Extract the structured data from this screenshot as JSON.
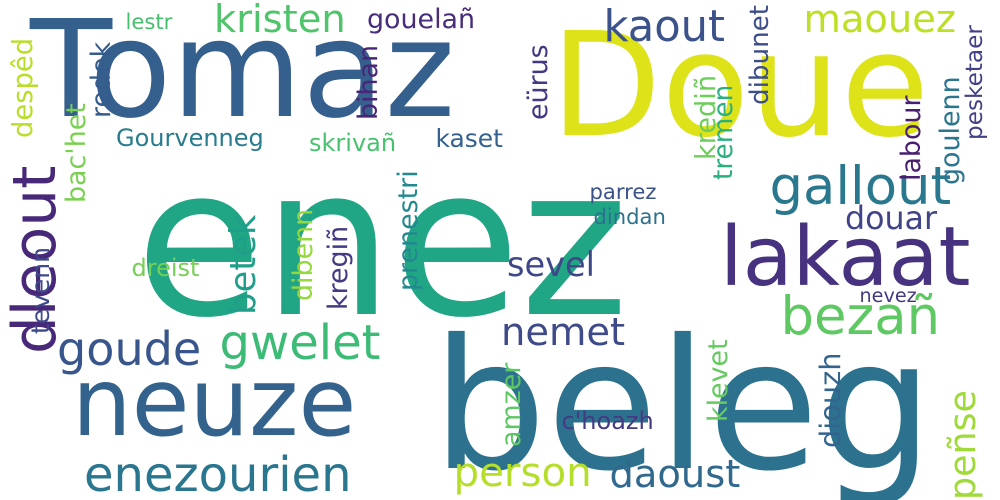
{
  "words": [
    {
      "text": "enez",
      "color": "#21a685"
    },
    {
      "text": "Doue",
      "color": "#dde318"
    },
    {
      "text": "Tomaz",
      "color": "#355f8d"
    },
    {
      "text": "beleg",
      "color": "#2c728e"
    },
    {
      "text": "neuze",
      "color": "#33638d"
    },
    {
      "text": "lakaat",
      "color": "#46327e"
    },
    {
      "text": "bezañ",
      "color": "#5ec962"
    },
    {
      "text": "gallout",
      "color": "#2a788e"
    },
    {
      "text": "dleout",
      "color": "#482878"
    },
    {
      "text": "enezourien",
      "color": "#2a768e"
    },
    {
      "text": "gwelet",
      "color": "#3bbb75"
    },
    {
      "text": "person",
      "color": "#b5de2b"
    },
    {
      "text": "goude",
      "color": "#39568c"
    },
    {
      "text": "nemet",
      "color": "#3e4a89"
    },
    {
      "text": "daoust",
      "color": "#31688e"
    },
    {
      "text": "kaout",
      "color": "#3b528b"
    },
    {
      "text": "maouez",
      "color": "#bddf26"
    },
    {
      "text": "kristen",
      "color": "#50c46a"
    },
    {
      "text": "sevel",
      "color": "#3f4788"
    },
    {
      "text": "douar",
      "color": "#414487"
    },
    {
      "text": "betek",
      "color": "#1f9e89"
    },
    {
      "text": "peñse",
      "color": "#a0da39"
    },
    {
      "text": "gouelañ",
      "color": "#472d7b"
    },
    {
      "text": "lestr",
      "color": "#46c06f"
    },
    {
      "text": "despêd",
      "color": "#b8de29"
    },
    {
      "text": "redek",
      "color": "#365c8d"
    },
    {
      "text": "bac'het",
      "color": "#7ad151"
    },
    {
      "text": "Gourvenneg",
      "color": "#287c8e"
    },
    {
      "text": "skrivañ",
      "color": "#48c16e"
    },
    {
      "text": "kaset",
      "color": "#34618d"
    },
    {
      "text": "bihan",
      "color": "#482576"
    },
    {
      "text": "eürus",
      "color": "#453781"
    },
    {
      "text": "krediñ",
      "color": "#6ccd5a"
    },
    {
      "text": "dibunet",
      "color": "#3d4d8a"
    },
    {
      "text": "tremen",
      "color": "#2ab07f"
    },
    {
      "text": "labour",
      "color": "#481f70"
    },
    {
      "text": "goulenn",
      "color": "#2b758e"
    },
    {
      "text": "pesketaer",
      "color": "#424086"
    },
    {
      "text": "parrez",
      "color": "#3b528b"
    },
    {
      "text": "dindan",
      "color": "#2c718e"
    },
    {
      "text": "prenestri",
      "color": "#23898e"
    },
    {
      "text": "kregiñ",
      "color": "#443983"
    },
    {
      "text": "dibenn",
      "color": "#95d840"
    },
    {
      "text": "dreist",
      "color": "#74d055"
    },
    {
      "text": "tevenn",
      "color": "#3e4989"
    },
    {
      "text": "nevez",
      "color": "#453882"
    },
    {
      "text": "klevet",
      "color": "#65cb5e"
    },
    {
      "text": "diouzh",
      "color": "#32648e"
    },
    {
      "text": "amzer",
      "color": "#5dc863"
    },
    {
      "text": "c'hoazh",
      "color": "#443a83"
    }
  ]
}
